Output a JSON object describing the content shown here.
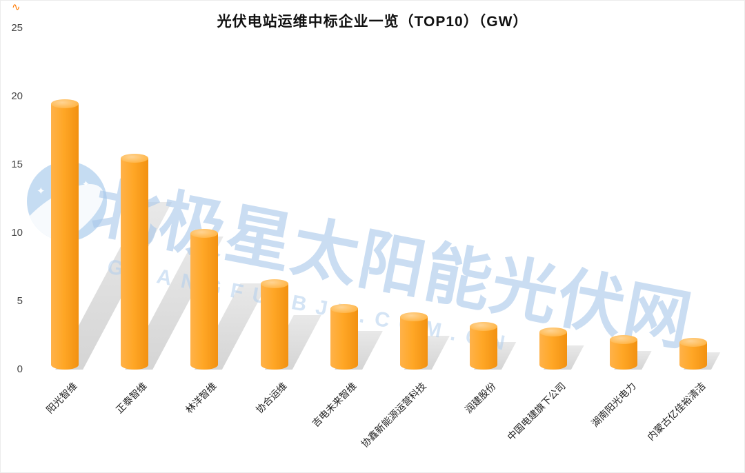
{
  "chart_data": {
    "type": "bar",
    "title": "光伏电站运维中标企业一览（TOP10）（GW）",
    "categories": [
      "阳光智维",
      "正泰智维",
      "林洋智维",
      "协合运维",
      "吉电未来智维",
      "协鑫新能源运营科技",
      "润建股份",
      "中国电建旗下公司",
      "湖南阳光电力",
      "内蒙古亿佳裕清洁"
    ],
    "values": [
      19.5,
      15.5,
      10,
      6.3,
      4.5,
      3.9,
      3.2,
      2.8,
      2.2,
      2.0
    ],
    "xlabel": "",
    "ylabel": "",
    "ylim": [
      0,
      25
    ],
    "yticks": [
      0,
      5,
      10,
      15,
      20,
      25
    ],
    "grid": false,
    "legend": false,
    "bar_color": "#FFA726",
    "bar_cap_color": "#FFC36B",
    "shadow_color": "#D7D7D7"
  },
  "watermark": {
    "text": "北极星太阳能光伏网",
    "subtext": "GUANGFU.BJX.COM.CN",
    "color": "#A7C7E9"
  },
  "decor": {
    "corner_mark": "∿"
  }
}
